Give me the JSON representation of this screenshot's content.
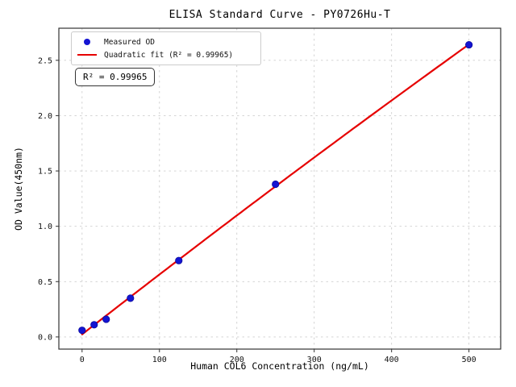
{
  "figure": {
    "title": "ELISA Standard Curve - PY0726Hu-T",
    "background": "#ffffff"
  },
  "chart_data": {
    "type": "scatter",
    "title": "ELISA Standard Curve - PY0726Hu-T",
    "xlabel": "Human COL6 Concentration (ng/mL)",
    "ylabel": "OD Value(450nm)",
    "xlim": [
      -30,
      541
    ],
    "ylim": [
      -0.11,
      2.79
    ],
    "x_ticks": [
      0,
      100,
      200,
      300,
      400,
      500
    ],
    "x_tick_labels": [
      "0",
      "100",
      "200",
      "300",
      "400",
      "500"
    ],
    "y_ticks": [
      0,
      0.5,
      1,
      1.5,
      2,
      2.5
    ],
    "y_tick_labels": [
      "0.0",
      "0.5",
      "1.0",
      "1.5",
      "2.0",
      "2.5"
    ],
    "grid": true,
    "grid_color": "#cfcfcf",
    "spine_color": "#333333",
    "legend_position": "upper left",
    "series": [
      {
        "name": "Measured OD",
        "type": "scatter",
        "color": "#1414d2",
        "x": [
          0,
          15.6,
          31.2,
          62.5,
          125,
          250,
          500
        ],
        "y": [
          0.06,
          0.11,
          0.16,
          0.35,
          0.69,
          1.38,
          2.64
        ]
      },
      {
        "name": "Quadratic fit (R² = 0.99965)",
        "type": "line",
        "fit": "quadratic",
        "color": "#e60000",
        "r_squared": 0.99965
      }
    ],
    "annotation": "R² = 0.99965"
  },
  "legend": {
    "items": [
      {
        "label": "Measured OD",
        "marker": "dot",
        "color": "#1414d2"
      },
      {
        "label": "Quadratic fit (R² = 0.99965)",
        "marker": "line",
        "color": "#e60000"
      }
    ]
  },
  "annotation_box": {
    "text": "R² = 0.99965"
  }
}
